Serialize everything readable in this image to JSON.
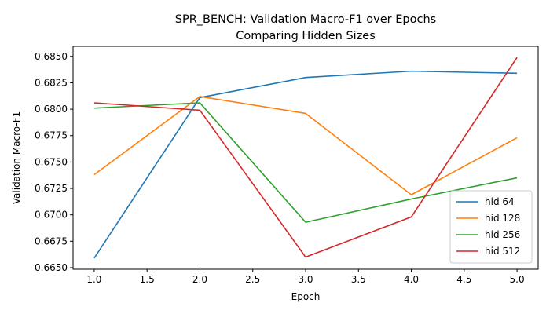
{
  "chart_data": {
    "type": "line",
    "title": "SPR_BENCH: Validation Macro-F1 over Epochs",
    "subtitle": "Comparing Hidden Sizes",
    "xlabel": "Epoch",
    "ylabel": "Validation Macro-F1",
    "x": [
      1,
      2,
      3,
      4,
      5
    ],
    "xlim": [
      0.8,
      5.2
    ],
    "ylim": [
      0.66485,
      0.68595
    ],
    "xticks": [
      1.0,
      1.5,
      2.0,
      2.5,
      3.0,
      3.5,
      4.0,
      4.5,
      5.0
    ],
    "xtick_labels": [
      "1.0",
      "1.5",
      "2.0",
      "2.5",
      "3.0",
      "3.5",
      "4.0",
      "4.5",
      "5.0"
    ],
    "yticks": [
      0.665,
      0.6675,
      0.67,
      0.6725,
      0.675,
      0.6775,
      0.68,
      0.6825,
      0.685
    ],
    "ytick_labels": [
      "0.6650",
      "0.6675",
      "0.6700",
      "0.6725",
      "0.6750",
      "0.6775",
      "0.6800",
      "0.6825",
      "0.6850"
    ],
    "grid": false,
    "legend_position": "bottom-right",
    "series": [
      {
        "name": "hid 64",
        "color": "#1f77b4",
        "values": [
          0.6659,
          0.6811,
          0.683,
          0.6836,
          0.6834
        ]
      },
      {
        "name": "hid 128",
        "color": "#ff7f0e",
        "values": [
          0.6738,
          0.6812,
          0.6796,
          0.6719,
          0.6773
        ]
      },
      {
        "name": "hid 256",
        "color": "#2ca02c",
        "values": [
          0.6801,
          0.6806,
          0.6693,
          0.6715,
          0.6735
        ]
      },
      {
        "name": "hid 512",
        "color": "#d62728",
        "values": [
          0.6806,
          0.6799,
          0.666,
          0.6698,
          0.6849
        ]
      }
    ]
  }
}
